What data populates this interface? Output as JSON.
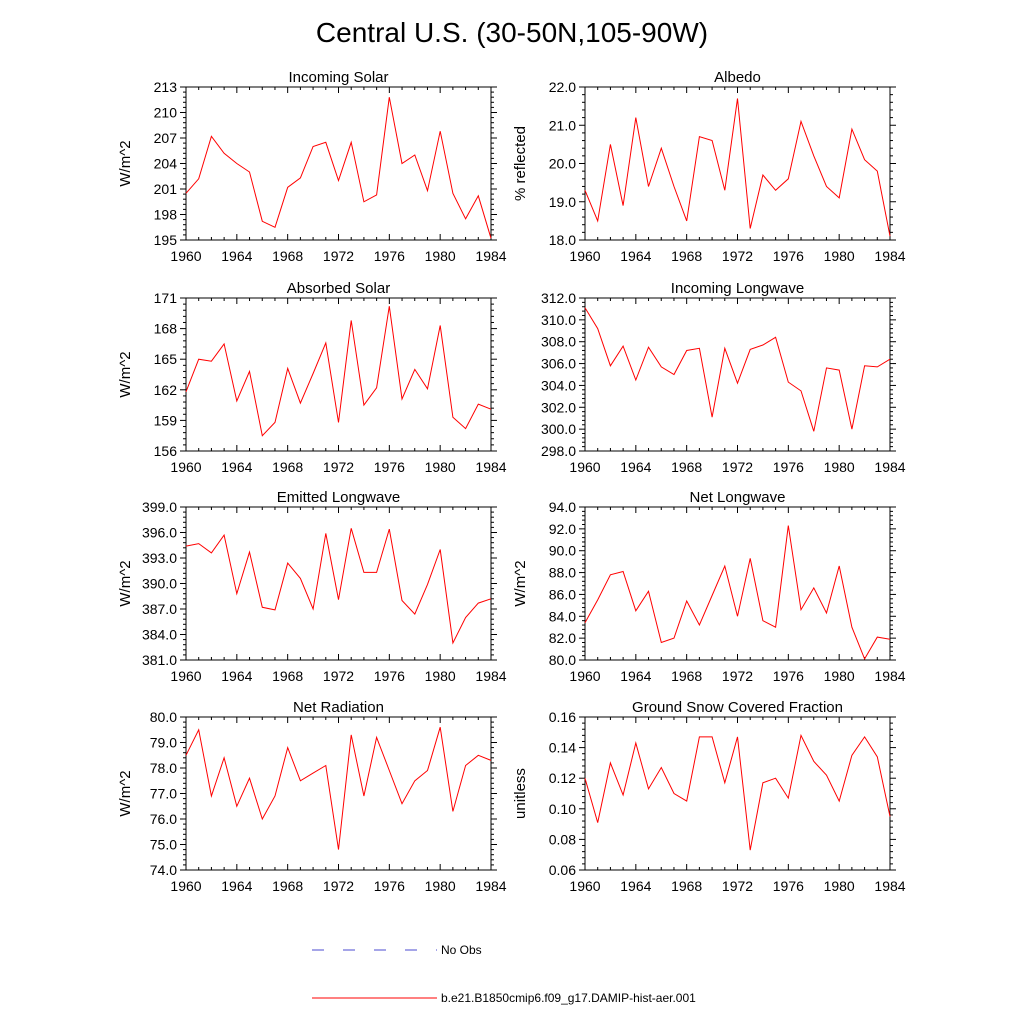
{
  "title": "Central U.S. (30-50N,105-90W)",
  "colors": {
    "model": "#ff0000",
    "obs": "#4b4bd0"
  },
  "legend": [
    {
      "label": "No Obs",
      "style": "dashed",
      "color": "#4b4bd0"
    },
    {
      "label": "b.e21.B1850cmip6.f09_g17.DAMIP-hist-aer.001",
      "style": "solid",
      "color": "#ff0000"
    }
  ],
  "chart_data": [
    {
      "type": "line",
      "title": "Incoming Solar",
      "ylabel": "W/m^2",
      "xlim": [
        1960,
        1984
      ],
      "ylim": [
        195,
        213
      ],
      "xticks": [
        1960,
        1964,
        1968,
        1972,
        1976,
        1980,
        1984
      ],
      "yticks": [
        195,
        198,
        201,
        204,
        207,
        210,
        213
      ],
      "ytick_labels": [
        "195",
        "198",
        "201",
        "204",
        "207",
        "210",
        "213"
      ],
      "x": [
        1960,
        1961,
        1962,
        1963,
        1964,
        1965,
        1966,
        1967,
        1968,
        1969,
        1970,
        1971,
        1972,
        1973,
        1974,
        1975,
        1976,
        1977,
        1978,
        1979,
        1980,
        1981,
        1982,
        1983,
        1984
      ],
      "series": [
        {
          "name": "b.e21.B1850cmip6.f09_g17.DAMIP-hist-aer.001",
          "values": [
            200.5,
            202.2,
            207.2,
            205.2,
            204.0,
            203.0,
            197.2,
            196.5,
            201.2,
            202.3,
            206.0,
            206.5,
            202.0,
            206.5,
            199.5,
            200.3,
            211.8,
            204.0,
            205.0,
            200.8,
            207.8,
            200.5,
            197.5,
            200.2,
            195.2
          ]
        }
      ]
    },
    {
      "type": "line",
      "title": "Albedo",
      "ylabel": "% reflected",
      "xlim": [
        1960,
        1984
      ],
      "ylim": [
        18.0,
        22.0
      ],
      "xticks": [
        1960,
        1964,
        1968,
        1972,
        1976,
        1980,
        1984
      ],
      "yticks": [
        18.0,
        19.0,
        20.0,
        21.0,
        22.0
      ],
      "ytick_labels": [
        "18.0",
        "19.0",
        "20.0",
        "21.0",
        "22.0"
      ],
      "x": [
        1960,
        1961,
        1962,
        1963,
        1964,
        1965,
        1966,
        1967,
        1968,
        1969,
        1970,
        1971,
        1972,
        1973,
        1974,
        1975,
        1976,
        1977,
        1978,
        1979,
        1980,
        1981,
        1982,
        1983,
        1984
      ],
      "series": [
        {
          "name": "b.e21.B1850cmip6.f09_g17.DAMIP-hist-aer.001",
          "values": [
            19.3,
            18.5,
            20.5,
            18.9,
            21.2,
            19.4,
            20.4,
            19.4,
            18.5,
            20.7,
            20.6,
            19.3,
            21.7,
            18.3,
            19.7,
            19.3,
            19.6,
            21.1,
            20.2,
            19.4,
            19.1,
            20.9,
            20.1,
            19.8,
            18.1
          ]
        }
      ]
    },
    {
      "type": "line",
      "title": "Absorbed Solar",
      "ylabel": "W/m^2",
      "xlim": [
        1960,
        1984
      ],
      "ylim": [
        156,
        171
      ],
      "xticks": [
        1960,
        1964,
        1968,
        1972,
        1976,
        1980,
        1984
      ],
      "yticks": [
        156,
        159,
        162,
        165,
        168,
        171
      ],
      "ytick_labels": [
        "156",
        "159",
        "162",
        "165",
        "168",
        "171"
      ],
      "x": [
        1960,
        1961,
        1962,
        1963,
        1964,
        1965,
        1966,
        1967,
        1968,
        1969,
        1970,
        1971,
        1972,
        1973,
        1974,
        1975,
        1976,
        1977,
        1978,
        1979,
        1980,
        1981,
        1982,
        1983,
        1984
      ],
      "series": [
        {
          "name": "b.e21.B1850cmip6.f09_g17.DAMIP-hist-aer.001",
          "values": [
            161.8,
            165.0,
            164.8,
            166.5,
            160.9,
            163.8,
            157.5,
            158.8,
            164.1,
            160.7,
            163.6,
            166.6,
            158.8,
            168.8,
            160.5,
            162.2,
            170.2,
            161.1,
            164.0,
            162.1,
            168.3,
            159.3,
            158.2,
            160.6,
            160.1
          ]
        }
      ]
    },
    {
      "type": "line",
      "title": "Incoming Longwave",
      "ylabel": "",
      "xlim": [
        1960,
        1984
      ],
      "ylim": [
        298.0,
        312.0
      ],
      "xticks": [
        1960,
        1964,
        1968,
        1972,
        1976,
        1980,
        1984
      ],
      "yticks": [
        298.0,
        300.0,
        302.0,
        304.0,
        306.0,
        308.0,
        310.0,
        312.0
      ],
      "ytick_labels": [
        "298.0",
        "300.0",
        "302.0",
        "304.0",
        "306.0",
        "308.0",
        "310.0",
        "312.0"
      ],
      "x": [
        1960,
        1961,
        1962,
        1963,
        1964,
        1965,
        1966,
        1967,
        1968,
        1969,
        1970,
        1971,
        1972,
        1973,
        1974,
        1975,
        1976,
        1977,
        1978,
        1979,
        1980,
        1981,
        1982,
        1983,
        1984
      ],
      "series": [
        {
          "name": "b.e21.B1850cmip6.f09_g17.DAMIP-hist-aer.001",
          "values": [
            311.1,
            309.2,
            305.8,
            307.6,
            304.5,
            307.5,
            305.7,
            305.0,
            307.2,
            307.4,
            301.1,
            307.4,
            304.2,
            307.3,
            307.7,
            308.4,
            304.3,
            303.5,
            299.8,
            305.6,
            305.4,
            300.0,
            305.8,
            305.7,
            306.4
          ]
        }
      ]
    },
    {
      "type": "line",
      "title": "Emitted Longwave",
      "ylabel": "W/m^2",
      "xlim": [
        1960,
        1984
      ],
      "ylim": [
        381.0,
        399.0
      ],
      "xticks": [
        1960,
        1964,
        1968,
        1972,
        1976,
        1980,
        1984
      ],
      "yticks": [
        381.0,
        384.0,
        387.0,
        390.0,
        393.0,
        396.0,
        399.0
      ],
      "ytick_labels": [
        "381.0",
        "384.0",
        "387.0",
        "390.0",
        "393.0",
        "396.0",
        "399.0"
      ],
      "x": [
        1960,
        1961,
        1962,
        1963,
        1964,
        1965,
        1966,
        1967,
        1968,
        1969,
        1970,
        1971,
        1972,
        1973,
        1974,
        1975,
        1976,
        1977,
        1978,
        1979,
        1980,
        1981,
        1982,
        1983,
        1984
      ],
      "series": [
        {
          "name": "b.e21.B1850cmip6.f09_g17.DAMIP-hist-aer.001",
          "values": [
            394.4,
            394.7,
            393.6,
            395.7,
            388.8,
            393.7,
            387.2,
            386.9,
            392.4,
            390.6,
            387.0,
            395.9,
            388.1,
            396.5,
            391.3,
            391.3,
            396.4,
            388.0,
            386.4,
            389.9,
            394.0,
            383.0,
            386.0,
            387.7,
            388.2
          ]
        }
      ]
    },
    {
      "type": "line",
      "title": "Net Longwave",
      "ylabel": "W/m^2",
      "xlim": [
        1960,
        1984
      ],
      "ylim": [
        80.0,
        94.0
      ],
      "xticks": [
        1960,
        1964,
        1968,
        1972,
        1976,
        1980,
        1984
      ],
      "yticks": [
        80.0,
        82.0,
        84.0,
        86.0,
        88.0,
        90.0,
        92.0,
        94.0
      ],
      "ytick_labels": [
        "80.0",
        "82.0",
        "84.0",
        "86.0",
        "88.0",
        "90.0",
        "92.0",
        "94.0"
      ],
      "x": [
        1960,
        1961,
        1962,
        1963,
        1964,
        1965,
        1966,
        1967,
        1968,
        1969,
        1970,
        1971,
        1972,
        1973,
        1974,
        1975,
        1976,
        1977,
        1978,
        1979,
        1980,
        1981,
        1982,
        1983,
        1984
      ],
      "series": [
        {
          "name": "b.e21.B1850cmip6.f09_g17.DAMIP-hist-aer.001",
          "values": [
            83.4,
            85.5,
            87.8,
            88.1,
            84.5,
            86.3,
            81.6,
            82.0,
            85.4,
            83.2,
            85.9,
            88.6,
            84.0,
            89.3,
            83.6,
            83.0,
            92.3,
            84.6,
            86.6,
            84.3,
            88.6,
            83.0,
            80.1,
            82.1,
            81.9
          ]
        }
      ]
    },
    {
      "type": "line",
      "title": "Net Radiation",
      "ylabel": "W/m^2",
      "xlim": [
        1960,
        1984
      ],
      "ylim": [
        74.0,
        80.0
      ],
      "xticks": [
        1960,
        1964,
        1968,
        1972,
        1976,
        1980,
        1984
      ],
      "yticks": [
        74.0,
        75.0,
        76.0,
        77.0,
        78.0,
        79.0,
        80.0
      ],
      "ytick_labels": [
        "74.0",
        "75.0",
        "76.0",
        "77.0",
        "78.0",
        "79.0",
        "80.0"
      ],
      "x": [
        1960,
        1961,
        1962,
        1963,
        1964,
        1965,
        1966,
        1967,
        1968,
        1969,
        1970,
        1971,
        1972,
        1973,
        1974,
        1975,
        1976,
        1977,
        1978,
        1979,
        1980,
        1981,
        1982,
        1983,
        1984
      ],
      "series": [
        {
          "name": "b.e21.B1850cmip6.f09_g17.DAMIP-hist-aer.001",
          "values": [
            78.5,
            79.5,
            76.9,
            78.4,
            76.5,
            77.6,
            76.0,
            76.9,
            78.8,
            77.5,
            77.8,
            78.1,
            74.8,
            79.3,
            76.9,
            79.2,
            77.9,
            76.6,
            77.5,
            77.9,
            79.6,
            76.3,
            78.1,
            78.5,
            78.3
          ]
        }
      ]
    },
    {
      "type": "line",
      "title": "Ground Snow Covered Fraction",
      "ylabel": "unitless",
      "xlim": [
        1960,
        1984
      ],
      "ylim": [
        0.06,
        0.16
      ],
      "xticks": [
        1960,
        1964,
        1968,
        1972,
        1976,
        1980,
        1984
      ],
      "yticks": [
        0.06,
        0.08,
        0.1,
        0.12,
        0.14,
        0.16
      ],
      "ytick_labels": [
        "0.06",
        "0.08",
        "0.10",
        "0.12",
        "0.14",
        "0.16"
      ],
      "x": [
        1960,
        1961,
        1962,
        1963,
        1964,
        1965,
        1966,
        1967,
        1968,
        1969,
        1970,
        1971,
        1972,
        1973,
        1974,
        1975,
        1976,
        1977,
        1978,
        1979,
        1980,
        1981,
        1982,
        1983,
        1984
      ],
      "series": [
        {
          "name": "b.e21.B1850cmip6.f09_g17.DAMIP-hist-aer.001",
          "values": [
            0.12,
            0.091,
            0.13,
            0.109,
            0.143,
            0.113,
            0.127,
            0.11,
            0.105,
            0.147,
            0.147,
            0.117,
            0.147,
            0.073,
            0.117,
            0.12,
            0.107,
            0.148,
            0.131,
            0.122,
            0.105,
            0.135,
            0.147,
            0.134,
            0.095
          ]
        }
      ]
    }
  ]
}
